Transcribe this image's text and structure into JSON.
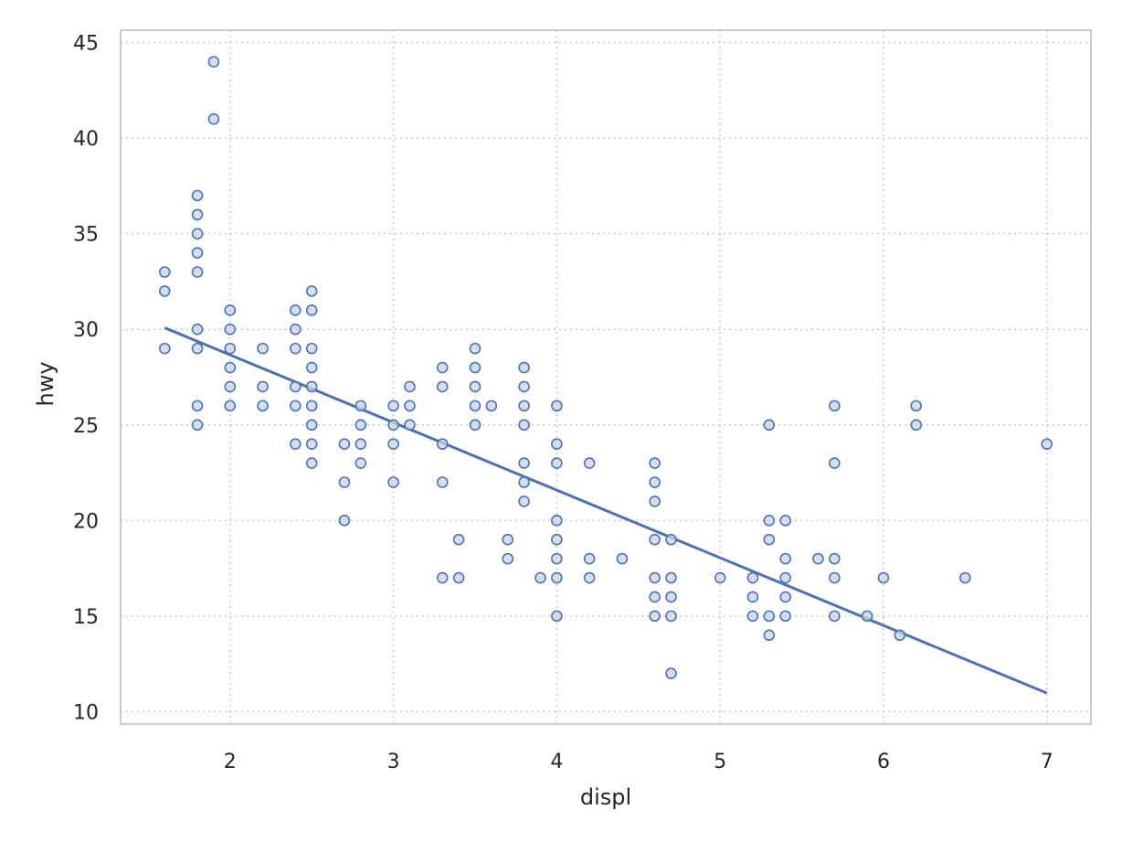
{
  "chart_data": {
    "type": "scatter",
    "title": "",
    "xlabel": "displ",
    "ylabel": "hwy",
    "xlim": [
      1.33,
      7.27
    ],
    "ylim": [
      9.35,
      45.65
    ],
    "xticks": [
      2,
      3,
      4,
      5,
      6,
      7
    ],
    "yticks": [
      10,
      15,
      20,
      25,
      30,
      35,
      40,
      45
    ],
    "grid": true,
    "colors": {
      "marker_edge": "#4c72b0",
      "marker_fill": "#c6d3ea",
      "line": "#4c72b0"
    },
    "trend_line": {
      "x": [
        1.6,
        7.0
      ],
      "y": [
        30.08,
        10.97
      ]
    },
    "points": [
      [
        1.6,
        33
      ],
      [
        1.6,
        32
      ],
      [
        1.6,
        29
      ],
      [
        1.8,
        37
      ],
      [
        1.8,
        36
      ],
      [
        1.8,
        35
      ],
      [
        1.8,
        34
      ],
      [
        1.8,
        33
      ],
      [
        1.8,
        30
      ],
      [
        1.8,
        29
      ],
      [
        1.8,
        26
      ],
      [
        1.8,
        25
      ],
      [
        1.9,
        44
      ],
      [
        1.9,
        41
      ],
      [
        2.0,
        31
      ],
      [
        2.0,
        30
      ],
      [
        2.0,
        29
      ],
      [
        2.0,
        28
      ],
      [
        2.0,
        27
      ],
      [
        2.0,
        26
      ],
      [
        2.2,
        29
      ],
      [
        2.2,
        27
      ],
      [
        2.2,
        26
      ],
      [
        2.4,
        31
      ],
      [
        2.4,
        30
      ],
      [
        2.4,
        29
      ],
      [
        2.4,
        27
      ],
      [
        2.4,
        26
      ],
      [
        2.4,
        24
      ],
      [
        2.5,
        32
      ],
      [
        2.5,
        31
      ],
      [
        2.5,
        29
      ],
      [
        2.5,
        28
      ],
      [
        2.5,
        27
      ],
      [
        2.5,
        26
      ],
      [
        2.5,
        25
      ],
      [
        2.5,
        24
      ],
      [
        2.5,
        23
      ],
      [
        2.7,
        24
      ],
      [
        2.7,
        22
      ],
      [
        2.7,
        20
      ],
      [
        2.8,
        26
      ],
      [
        2.8,
        25
      ],
      [
        2.8,
        24
      ],
      [
        2.8,
        23
      ],
      [
        3.0,
        26
      ],
      [
        3.0,
        25
      ],
      [
        3.0,
        24
      ],
      [
        3.0,
        22
      ],
      [
        3.1,
        27
      ],
      [
        3.1,
        26
      ],
      [
        3.1,
        25
      ],
      [
        3.3,
        28
      ],
      [
        3.3,
        27
      ],
      [
        3.3,
        24
      ],
      [
        3.3,
        22
      ],
      [
        3.3,
        17
      ],
      [
        3.4,
        19
      ],
      [
        3.4,
        17
      ],
      [
        3.5,
        29
      ],
      [
        3.5,
        28
      ],
      [
        3.5,
        27
      ],
      [
        3.5,
        26
      ],
      [
        3.5,
        25
      ],
      [
        3.6,
        26
      ],
      [
        3.7,
        19
      ],
      [
        3.7,
        18
      ],
      [
        3.8,
        28
      ],
      [
        3.8,
        27
      ],
      [
        3.8,
        26
      ],
      [
        3.8,
        25
      ],
      [
        3.8,
        23
      ],
      [
        3.8,
        22
      ],
      [
        3.8,
        21
      ],
      [
        3.9,
        17
      ],
      [
        4.0,
        26
      ],
      [
        4.0,
        24
      ],
      [
        4.0,
        23
      ],
      [
        4.0,
        20
      ],
      [
        4.0,
        19
      ],
      [
        4.0,
        18
      ],
      [
        4.0,
        17
      ],
      [
        4.0,
        15
      ],
      [
        4.2,
        23
      ],
      [
        4.2,
        18
      ],
      [
        4.2,
        17
      ],
      [
        4.4,
        18
      ],
      [
        4.6,
        23
      ],
      [
        4.6,
        22
      ],
      [
        4.6,
        21
      ],
      [
        4.6,
        19
      ],
      [
        4.6,
        17
      ],
      [
        4.6,
        16
      ],
      [
        4.6,
        15
      ],
      [
        4.7,
        19
      ],
      [
        4.7,
        17
      ],
      [
        4.7,
        16
      ],
      [
        4.7,
        15
      ],
      [
        4.7,
        12
      ],
      [
        5.0,
        17
      ],
      [
        5.2,
        17
      ],
      [
        5.2,
        16
      ],
      [
        5.2,
        15
      ],
      [
        5.3,
        25
      ],
      [
        5.3,
        20
      ],
      [
        5.3,
        19
      ],
      [
        5.3,
        15
      ],
      [
        5.3,
        14
      ],
      [
        5.4,
        20
      ],
      [
        5.4,
        18
      ],
      [
        5.4,
        17
      ],
      [
        5.4,
        16
      ],
      [
        5.4,
        15
      ],
      [
        5.6,
        18
      ],
      [
        5.7,
        26
      ],
      [
        5.7,
        23
      ],
      [
        5.7,
        18
      ],
      [
        5.7,
        17
      ],
      [
        5.7,
        15
      ],
      [
        5.9,
        15
      ],
      [
        6.0,
        17
      ],
      [
        6.1,
        14
      ],
      [
        6.2,
        26
      ],
      [
        6.2,
        25
      ],
      [
        6.5,
        17
      ],
      [
        7.0,
        24
      ]
    ]
  }
}
